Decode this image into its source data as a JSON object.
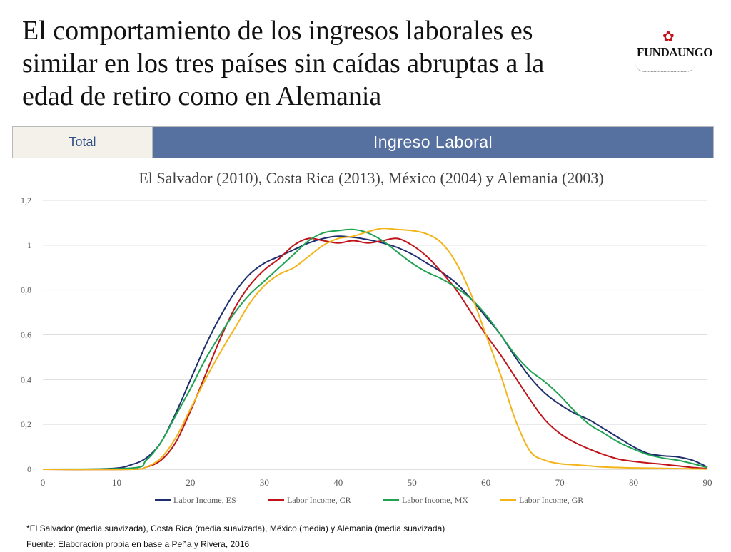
{
  "slide": {
    "headline": "El comportamiento de los ingresos laborales es similar en los tres países sin caídas abruptas a la edad de retiro como en Alemania",
    "logo_text": "FUNDAUNGO",
    "tabs": {
      "total_label": "Total",
      "main_label": "Ingreso Laboral"
    },
    "footnote": "*El Salvador (media suavizada), Costa Rica (media suavizada), México (media) y Alemania (media suavizada)",
    "source": "Fuente: Elaboración propia en base a Peña y Rivera, 2016"
  },
  "chart_data": {
    "type": "line",
    "title": "El Salvador (2010), Costa Rica (2013), México (2004) y Alemania (2003)",
    "xlabel": "",
    "ylabel": "",
    "xlim": [
      0,
      90
    ],
    "ylim": [
      0,
      1.2
    ],
    "x_ticks": [
      0,
      10,
      20,
      30,
      40,
      50,
      60,
      70,
      80,
      90
    ],
    "y_ticks": [
      0,
      0.2,
      0.4,
      0.6,
      0.8,
      1,
      1.2
    ],
    "y_tick_labels": [
      "0",
      "0,2",
      "0,4",
      "0,6",
      "0,8",
      "1",
      "1,2"
    ],
    "grid": "horizontal",
    "legend": "bottom",
    "series": [
      {
        "name": "Labor Income, ES",
        "color": "#1f2f6e",
        "points": [
          [
            0,
            0
          ],
          [
            6,
            0
          ],
          [
            10,
            0.005
          ],
          [
            12,
            0.02
          ],
          [
            14,
            0.05
          ],
          [
            16,
            0.12
          ],
          [
            18,
            0.25
          ],
          [
            20,
            0.4
          ],
          [
            22,
            0.55
          ],
          [
            24,
            0.68
          ],
          [
            26,
            0.79
          ],
          [
            28,
            0.87
          ],
          [
            30,
            0.92
          ],
          [
            32,
            0.95
          ],
          [
            34,
            0.98
          ],
          [
            36,
            1.01
          ],
          [
            38,
            1.03
          ],
          [
            40,
            1.04
          ],
          [
            42,
            1.035
          ],
          [
            44,
            1.025
          ],
          [
            46,
            1.01
          ],
          [
            48,
            0.99
          ],
          [
            50,
            0.96
          ],
          [
            52,
            0.92
          ],
          [
            54,
            0.88
          ],
          [
            56,
            0.83
          ],
          [
            58,
            0.76
          ],
          [
            60,
            0.68
          ],
          [
            62,
            0.6
          ],
          [
            64,
            0.5
          ],
          [
            66,
            0.41
          ],
          [
            68,
            0.34
          ],
          [
            70,
            0.29
          ],
          [
            72,
            0.25
          ],
          [
            74,
            0.22
          ],
          [
            76,
            0.18
          ],
          [
            78,
            0.14
          ],
          [
            80,
            0.1
          ],
          [
            82,
            0.07
          ],
          [
            84,
            0.06
          ],
          [
            86,
            0.055
          ],
          [
            88,
            0.04
          ],
          [
            90,
            0.01
          ]
        ]
      },
      {
        "name": "Labor Income, CR",
        "color": "#c0141b",
        "points": [
          [
            0,
            0
          ],
          [
            12,
            0
          ],
          [
            14,
            0.01
          ],
          [
            16,
            0.04
          ],
          [
            18,
            0.12
          ],
          [
            20,
            0.26
          ],
          [
            22,
            0.42
          ],
          [
            24,
            0.58
          ],
          [
            26,
            0.72
          ],
          [
            28,
            0.82
          ],
          [
            30,
            0.89
          ],
          [
            32,
            0.94
          ],
          [
            34,
            1.0
          ],
          [
            36,
            1.03
          ],
          [
            38,
            1.02
          ],
          [
            40,
            1.01
          ],
          [
            42,
            1.02
          ],
          [
            44,
            1.01
          ],
          [
            46,
            1.02
          ],
          [
            48,
            1.03
          ],
          [
            50,
            1.0
          ],
          [
            52,
            0.95
          ],
          [
            54,
            0.88
          ],
          [
            56,
            0.8
          ],
          [
            58,
            0.7
          ],
          [
            60,
            0.6
          ],
          [
            62,
            0.51
          ],
          [
            64,
            0.41
          ],
          [
            66,
            0.31
          ],
          [
            68,
            0.22
          ],
          [
            70,
            0.16
          ],
          [
            72,
            0.12
          ],
          [
            74,
            0.09
          ],
          [
            76,
            0.065
          ],
          [
            78,
            0.045
          ],
          [
            80,
            0.035
          ],
          [
            82,
            0.028
          ],
          [
            84,
            0.022
          ],
          [
            86,
            0.015
          ],
          [
            88,
            0.008
          ],
          [
            90,
            0.003
          ]
        ]
      },
      {
        "name": "Labor Income, MX",
        "color": "#1fa352",
        "points": [
          [
            0,
            0
          ],
          [
            12,
            0.005
          ],
          [
            14,
            0.04
          ],
          [
            16,
            0.12
          ],
          [
            18,
            0.24
          ],
          [
            20,
            0.36
          ],
          [
            22,
            0.49
          ],
          [
            24,
            0.6
          ],
          [
            26,
            0.7
          ],
          [
            28,
            0.78
          ],
          [
            30,
            0.84
          ],
          [
            32,
            0.9
          ],
          [
            34,
            0.96
          ],
          [
            36,
            1.02
          ],
          [
            38,
            1.055
          ],
          [
            40,
            1.065
          ],
          [
            42,
            1.07
          ],
          [
            44,
            1.055
          ],
          [
            46,
            1.02
          ],
          [
            48,
            0.97
          ],
          [
            50,
            0.92
          ],
          [
            52,
            0.88
          ],
          [
            54,
            0.85
          ],
          [
            56,
            0.81
          ],
          [
            58,
            0.76
          ],
          [
            60,
            0.69
          ],
          [
            62,
            0.6
          ],
          [
            64,
            0.51
          ],
          [
            66,
            0.44
          ],
          [
            68,
            0.39
          ],
          [
            70,
            0.33
          ],
          [
            72,
            0.26
          ],
          [
            74,
            0.2
          ],
          [
            76,
            0.16
          ],
          [
            78,
            0.12
          ],
          [
            80,
            0.09
          ],
          [
            82,
            0.065
          ],
          [
            84,
            0.05
          ],
          [
            86,
            0.04
          ],
          [
            88,
            0.025
          ],
          [
            90,
            0.008
          ]
        ]
      },
      {
        "name": "Labor Income, GR",
        "color": "#f2b418",
        "points": [
          [
            0,
            0
          ],
          [
            12,
            0
          ],
          [
            14,
            0.01
          ],
          [
            16,
            0.05
          ],
          [
            18,
            0.14
          ],
          [
            20,
            0.27
          ],
          [
            22,
            0.4
          ],
          [
            24,
            0.52
          ],
          [
            26,
            0.63
          ],
          [
            28,
            0.74
          ],
          [
            30,
            0.82
          ],
          [
            32,
            0.87
          ],
          [
            34,
            0.9
          ],
          [
            36,
            0.95
          ],
          [
            38,
            1.0
          ],
          [
            40,
            1.03
          ],
          [
            42,
            1.04
          ],
          [
            44,
            1.06
          ],
          [
            46,
            1.075
          ],
          [
            48,
            1.07
          ],
          [
            50,
            1.065
          ],
          [
            52,
            1.05
          ],
          [
            54,
            1.01
          ],
          [
            56,
            0.92
          ],
          [
            58,
            0.78
          ],
          [
            60,
            0.6
          ],
          [
            62,
            0.42
          ],
          [
            64,
            0.22
          ],
          [
            66,
            0.08
          ],
          [
            68,
            0.04
          ],
          [
            70,
            0.025
          ],
          [
            72,
            0.02
          ],
          [
            74,
            0.015
          ],
          [
            76,
            0.01
          ],
          [
            78,
            0.008
          ],
          [
            80,
            0.006
          ],
          [
            84,
            0.004
          ],
          [
            88,
            0.002
          ],
          [
            90,
            0.001
          ]
        ]
      }
    ]
  }
}
